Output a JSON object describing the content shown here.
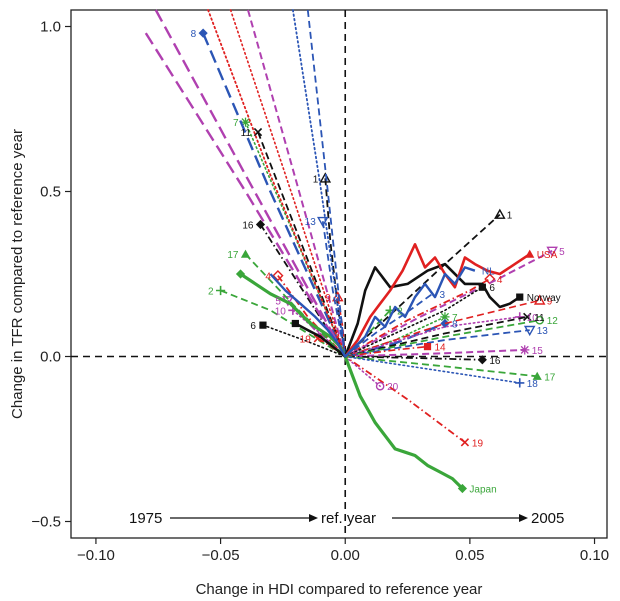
{
  "chart_data": {
    "type": "line",
    "title": "",
    "xlabel": "Change in HDI compared to reference year",
    "ylabel": "Change in TFR compared to reference year",
    "xlim": [
      -0.11,
      0.105
    ],
    "ylim": [
      -0.55,
      1.05
    ],
    "xticks": [
      {
        "value": -0.1,
        "label": "−0.10"
      },
      {
        "value": -0.05,
        "label": "−0.05"
      },
      {
        "value": 0.0,
        "label": "0.00"
      },
      {
        "value": 0.05,
        "label": "0.05"
      },
      {
        "value": 0.1,
        "label": "0.10"
      }
    ],
    "yticks": [
      {
        "value": -0.5,
        "label": "−0.5"
      },
      {
        "value": 0.0,
        "label": "0.0"
      },
      {
        "value": 0.5,
        "label": "0.5"
      },
      {
        "value": 1.0,
        "label": "1.0"
      }
    ],
    "annotation": {
      "start": "1975",
      "middle": "ref. year",
      "end": "2005"
    },
    "series": [
      {
        "name": "Japan",
        "color": "#3aa63a",
        "style": "solid",
        "width": 3.2,
        "marker": "diamond",
        "label": "Japan",
        "label_side": "end",
        "x": [
          -0.042,
          -0.036,
          -0.03,
          -0.022,
          -0.018,
          -0.014,
          -0.01,
          -0.006,
          -0.002,
          0.0,
          0.003,
          0.006,
          0.009,
          0.012,
          0.016,
          0.02,
          0.024,
          0.028,
          0.033,
          0.038,
          0.043,
          0.047
        ],
        "y": [
          0.25,
          0.22,
          0.19,
          0.16,
          0.13,
          0.1,
          0.08,
          0.06,
          0.03,
          0.0,
          -0.06,
          -0.12,
          -0.16,
          -0.2,
          -0.24,
          -0.28,
          -0.29,
          -0.3,
          -0.33,
          -0.35,
          -0.37,
          -0.4
        ]
      },
      {
        "name": "Norway",
        "color": "#111111",
        "style": "solid",
        "width": 2.6,
        "marker": "square",
        "label": "Norway",
        "label_side": "end",
        "x": [
          -0.02,
          -0.015,
          -0.01,
          -0.005,
          0.0,
          0.005,
          0.008,
          0.012,
          0.018,
          0.025,
          0.033,
          0.04,
          0.048,
          0.055,
          0.058,
          0.062,
          0.066,
          0.07
        ],
        "y": [
          0.1,
          0.08,
          0.06,
          0.03,
          0.0,
          0.1,
          0.2,
          0.27,
          0.21,
          0.22,
          0.26,
          0.28,
          0.22,
          0.22,
          0.18,
          0.15,
          0.16,
          0.18
        ]
      },
      {
        "name": "USA",
        "color": "#e02020",
        "style": "solid",
        "width": 2.6,
        "marker": "triangle",
        "label": "USA",
        "label_side": "end",
        "x": [
          0.0,
          0.005,
          0.01,
          0.014,
          0.018,
          0.023,
          0.028,
          0.032,
          0.036,
          0.04,
          0.044,
          0.048,
          0.052,
          0.057,
          0.062,
          0.066,
          0.07,
          0.074
        ],
        "y": [
          0.0,
          0.05,
          0.12,
          0.16,
          0.2,
          0.26,
          0.34,
          0.27,
          0.3,
          0.25,
          0.21,
          0.3,
          0.28,
          0.26,
          0.25,
          0.27,
          0.29,
          0.31
        ]
      },
      {
        "name": "NL",
        "color": "#2b55b5",
        "style": "solid",
        "width": 2.4,
        "marker": "none",
        "label": "NL",
        "label_side": "end",
        "x": [
          -0.03,
          -0.024,
          -0.018,
          -0.012,
          -0.007,
          -0.003,
          0.0,
          0.004,
          0.008,
          0.012,
          0.016,
          0.02,
          0.024,
          0.028,
          0.032,
          0.036,
          0.04,
          0.044,
          0.048,
          0.052
        ],
        "y": [
          0.25,
          0.2,
          0.16,
          0.12,
          0.08,
          0.04,
          0.0,
          0.03,
          0.06,
          0.12,
          0.09,
          0.15,
          0.12,
          0.18,
          0.22,
          0.18,
          0.25,
          0.22,
          0.27,
          0.26
        ]
      },
      {
        "name": "1",
        "color": "#111111",
        "style": "dashed",
        "width": 1.8,
        "marker": "tri-open",
        "label": "1",
        "label_side": "both",
        "x": [
          -0.008,
          -0.006,
          -0.003,
          0.0,
          0.02,
          0.04,
          0.062
        ],
        "y": [
          0.54,
          0.35,
          0.15,
          0.0,
          0.14,
          0.28,
          0.43
        ]
      },
      {
        "name": "2",
        "color": "#3aa63a",
        "style": "dashed",
        "width": 1.8,
        "marker": "plus",
        "label": "2",
        "label_side": "both",
        "x": [
          -0.05,
          -0.03,
          -0.015,
          0.0,
          0.008,
          0.018
        ],
        "y": [
          0.2,
          0.14,
          0.07,
          0.0,
          0.06,
          0.14
        ]
      },
      {
        "name": "3",
        "color": "#2b55b5",
        "style": "dashed",
        "width": 1.8,
        "marker": "none",
        "label": "3",
        "label_side": "end",
        "x": [
          0.0,
          0.012,
          0.024,
          0.035
        ],
        "y": [
          0.0,
          0.07,
          0.13,
          0.19
        ]
      },
      {
        "name": "4",
        "color": "#e02020",
        "style": "dashdot",
        "width": 1.8,
        "marker": "diamond-open",
        "label": "4",
        "label_side": "both",
        "x": [
          -0.027,
          -0.015,
          0.0,
          0.025,
          0.05,
          0.058
        ],
        "y": [
          0.245,
          0.12,
          0.0,
          0.11,
          0.2,
          0.235
        ]
      },
      {
        "name": "5",
        "color": "#b040b0",
        "style": "dashed",
        "width": 2.0,
        "marker": "tri-down-open",
        "label": "5",
        "label_side": "both",
        "x": [
          -0.023,
          -0.012,
          0.0,
          0.03,
          0.06,
          0.083
        ],
        "y": [
          0.17,
          0.08,
          0.0,
          0.12,
          0.23,
          0.32
        ]
      },
      {
        "name": "6",
        "color": "#111111",
        "style": "dotted",
        "width": 1.6,
        "marker": "square",
        "label": "6",
        "label_side": "both",
        "x": [
          -0.033,
          -0.015,
          0.0,
          0.02,
          0.04,
          0.055
        ],
        "y": [
          0.095,
          0.045,
          0.0,
          0.07,
          0.14,
          0.21
        ]
      },
      {
        "name": "7",
        "color": "#3aa63a",
        "style": "dotted",
        "width": 1.6,
        "marker": "star",
        "label": "7",
        "label_side": "both",
        "x": [
          -0.04,
          -0.02,
          0.0,
          0.02,
          0.04
        ],
        "y": [
          0.71,
          0.36,
          0.0,
          0.05,
          0.12
        ]
      },
      {
        "name": "8",
        "color": "#2b55b5",
        "style": "longdash",
        "width": 2.4,
        "marker": "diamond",
        "label": "8",
        "label_side": "both",
        "x": [
          -0.057,
          -0.03,
          0.0,
          0.02,
          0.04
        ],
        "y": [
          0.98,
          0.5,
          0.0,
          0.04,
          0.1
        ]
      },
      {
        "name": "9",
        "color": "#e02020",
        "style": "dashed",
        "width": 1.6,
        "marker": "tri-open",
        "label": "9",
        "label_side": "both",
        "x": [
          -0.003,
          -0.001,
          0.0,
          0.04,
          0.078
        ],
        "y": [
          0.18,
          0.09,
          0.0,
          0.1,
          0.17
        ]
      },
      {
        "name": "10",
        "color": "#b040b0",
        "style": "dotted",
        "width": 1.6,
        "marker": "plus",
        "label": "10",
        "label_side": "both",
        "x": [
          -0.021,
          -0.01,
          0.0,
          0.04,
          0.07
        ],
        "y": [
          0.14,
          0.07,
          0.0,
          0.09,
          0.12
        ]
      },
      {
        "name": "11",
        "color": "#111111",
        "style": "dashed",
        "width": 1.8,
        "marker": "cross",
        "label": "11",
        "label_side": "both",
        "x": [
          -0.035,
          -0.018,
          0.0,
          0.04,
          0.073
        ],
        "y": [
          0.68,
          0.35,
          0.0,
          0.07,
          0.12
        ]
      },
      {
        "name": "12",
        "color": "#3aa63a",
        "style": "dashed",
        "width": 1.8,
        "marker": "circle-open",
        "label": "12",
        "label_side": "end",
        "x": [
          0.0,
          0.04,
          0.078
        ],
        "y": [
          0.0,
          0.06,
          0.11
        ]
      },
      {
        "name": "13",
        "color": "#2b55b5",
        "style": "dashed",
        "width": 1.8,
        "marker": "tri-down-open",
        "label": "13",
        "label_side": "both",
        "x": [
          -0.009,
          -0.005,
          0.0,
          0.04,
          0.074
        ],
        "y": [
          0.41,
          0.2,
          0.0,
          0.05,
          0.08
        ]
      },
      {
        "name": "14",
        "color": "#e02020",
        "style": "dashdot",
        "width": 1.6,
        "marker": "square",
        "label": "14",
        "label_side": "end",
        "x": [
          0.0,
          0.02,
          0.033
        ],
        "y": [
          0.0,
          0.02,
          0.03
        ]
      },
      {
        "name": "15",
        "color": "#b040b0",
        "style": "dashed",
        "width": 2.0,
        "marker": "star",
        "label": "15",
        "label_side": "end",
        "x": [
          0.0,
          0.04,
          0.072
        ],
        "y": [
          0.0,
          0.01,
          0.02
        ]
      },
      {
        "name": "16",
        "color": "#111111",
        "style": "dashdot",
        "width": 1.8,
        "marker": "diamond",
        "label": "16",
        "label_side": "both",
        "x": [
          -0.034,
          -0.017,
          0.0,
          0.03,
          0.055
        ],
        "y": [
          0.4,
          0.2,
          0.0,
          -0.005,
          -0.01
        ]
      },
      {
        "name": "17",
        "color": "#3aa63a",
        "style": "dashed",
        "width": 1.8,
        "marker": "triangle",
        "label": "17",
        "label_side": "both",
        "x": [
          -0.04,
          -0.02,
          0.0,
          0.04,
          0.077
        ],
        "y": [
          0.31,
          0.15,
          0.0,
          -0.03,
          -0.06
        ]
      },
      {
        "name": "18",
        "color": "#2b55b5",
        "style": "dotted",
        "width": 1.6,
        "marker": "plus",
        "label": "18",
        "label_side": "end",
        "x": [
          0.0,
          0.035,
          0.07
        ],
        "y": [
          0.0,
          -0.04,
          -0.08
        ]
      },
      {
        "name": "19",
        "color": "#e02020",
        "style": "dashdot",
        "width": 1.8,
        "marker": "cross",
        "label": "19",
        "label_side": "both",
        "x": [
          -0.011,
          -0.005,
          0.0,
          0.025,
          0.048
        ],
        "y": [
          0.055,
          0.027,
          0.0,
          -0.13,
          -0.26
        ]
      },
      {
        "name": "20",
        "color": "#b040b0",
        "style": "dotted",
        "width": 1.6,
        "marker": "circle-open",
        "label": "20",
        "label_side": "end",
        "x": [
          0.0,
          0.007,
          0.014
        ],
        "y": [
          0.0,
          -0.045,
          -0.09
        ]
      },
      {
        "name": "early-red",
        "color": "#e02020",
        "style": "dotted",
        "width": 1.8,
        "marker": "none",
        "label": "",
        "label_side": "none",
        "x": [
          -0.055,
          -0.03,
          0.0
        ],
        "y": [
          1.05,
          0.55,
          0.0
        ]
      },
      {
        "name": "early-magenta",
        "color": "#b040b0",
        "style": "longdash",
        "width": 2.4,
        "marker": "none",
        "label": "",
        "label_side": "none",
        "x": [
          -0.08,
          -0.04,
          0.0
        ],
        "y": [
          0.98,
          0.5,
          0.0
        ]
      },
      {
        "name": "early-magenta-2",
        "color": "#b040b0",
        "style": "longdash",
        "width": 2.4,
        "marker": "none",
        "label": "",
        "label_side": "none",
        "x": [
          -0.076,
          -0.04,
          0.0
        ],
        "y": [
          1.05,
          0.55,
          0.0
        ]
      },
      {
        "name": "early-magenta-3",
        "color": "#b040b0",
        "style": "dashed",
        "width": 2.0,
        "marker": "none",
        "label": "",
        "label_side": "none",
        "x": [
          -0.039,
          -0.02,
          0.0
        ],
        "y": [
          1.05,
          0.54,
          0.0
        ]
      },
      {
        "name": "early-blue",
        "color": "#2b55b5",
        "style": "dashed",
        "width": 1.8,
        "marker": "none",
        "label": "",
        "label_side": "none",
        "x": [
          -0.015,
          -0.007,
          0.0
        ],
        "y": [
          1.05,
          0.5,
          0.0
        ]
      },
      {
        "name": "early-blue-2",
        "color": "#2b55b5",
        "style": "dotted",
        "width": 1.8,
        "marker": "none",
        "label": "",
        "label_side": "none",
        "x": [
          -0.021,
          -0.01,
          0.0
        ],
        "y": [
          1.05,
          0.52,
          0.0
        ]
      },
      {
        "name": "early-red-2",
        "color": "#e02020",
        "style": "dotted",
        "width": 1.6,
        "marker": "none",
        "label": "",
        "label_side": "none",
        "x": [
          -0.046,
          -0.02,
          0.0
        ],
        "y": [
          1.05,
          0.46,
          0.0
        ]
      }
    ]
  }
}
